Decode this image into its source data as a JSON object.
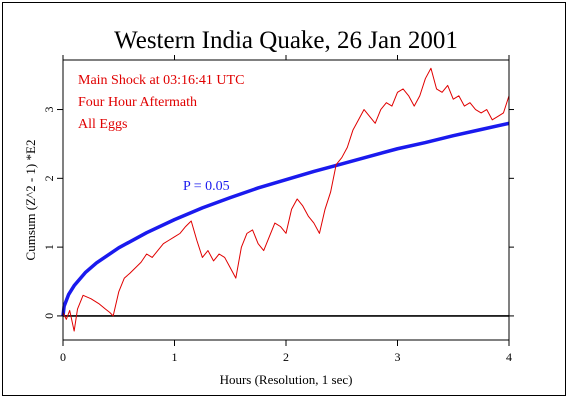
{
  "chart_data": {
    "type": "line",
    "title": "Western India Quake, 26 Jan 2001",
    "xlabel": "Hours (Resolution, 1 sec)",
    "ylabel": "Cumsum (Z^2 - 1) *E2",
    "xlim": [
      0,
      4
    ],
    "ylim": [
      -0.35,
      3.72
    ],
    "x_ticks": [
      0,
      1,
      2,
      3,
      4
    ],
    "x_tick_labels": [
      "0",
      "1",
      "2",
      "3",
      "4"
    ],
    "y_ticks": [
      0,
      1,
      2,
      3
    ],
    "y_tick_labels": [
      "0",
      "1",
      "2",
      "3"
    ],
    "grid": false,
    "annotations": [
      "Main Shock at 03:16:41 UTC",
      "Four Hour Aftermath",
      "All Eggs"
    ],
    "series": [
      {
        "name": "",
        "color": "#e00000",
        "x": [
          0,
          0.03,
          0.06,
          0.1,
          0.13,
          0.18,
          0.25,
          0.32,
          0.38,
          0.42,
          0.45,
          0.5,
          0.55,
          0.6,
          0.65,
          0.7,
          0.75,
          0.8,
          0.85,
          0.9,
          0.95,
          1.0,
          1.05,
          1.1,
          1.15,
          1.2,
          1.25,
          1.3,
          1.35,
          1.4,
          1.45,
          1.5,
          1.55,
          1.6,
          1.65,
          1.7,
          1.75,
          1.8,
          1.85,
          1.9,
          1.95,
          2.0,
          2.05,
          2.1,
          2.15,
          2.2,
          2.25,
          2.3,
          2.35,
          2.4,
          2.45,
          2.5,
          2.55,
          2.6,
          2.65,
          2.7,
          2.75,
          2.8,
          2.85,
          2.9,
          2.95,
          3.0,
          3.05,
          3.1,
          3.15,
          3.2,
          3.25,
          3.3,
          3.35,
          3.4,
          3.45,
          3.5,
          3.55,
          3.6,
          3.65,
          3.7,
          3.75,
          3.8,
          3.85,
          3.9,
          3.95,
          4.0
        ],
        "y": [
          0.05,
          -0.05,
          0.08,
          -0.22,
          0.1,
          0.3,
          0.25,
          0.18,
          0.1,
          0.05,
          0.0,
          0.35,
          0.55,
          0.62,
          0.7,
          0.78,
          0.9,
          0.85,
          0.95,
          1.05,
          1.1,
          1.15,
          1.2,
          1.3,
          1.38,
          1.1,
          0.85,
          0.95,
          0.8,
          0.9,
          0.85,
          0.7,
          0.55,
          1.0,
          1.2,
          1.25,
          1.05,
          0.95,
          1.15,
          1.35,
          1.3,
          1.2,
          1.55,
          1.7,
          1.6,
          1.45,
          1.35,
          1.2,
          1.55,
          1.8,
          2.2,
          2.3,
          2.45,
          2.7,
          2.85,
          3.0,
          2.9,
          2.8,
          3.0,
          3.1,
          3.05,
          3.25,
          3.3,
          3.2,
          3.05,
          3.2,
          3.45,
          3.6,
          3.3,
          3.25,
          3.35,
          3.15,
          3.2,
          3.05,
          3.1,
          3.0,
          2.95,
          3.0,
          2.85,
          2.9,
          2.95,
          3.2
        ]
      },
      {
        "name": "P = 0.05",
        "color": "#1a1aee",
        "x": [
          0,
          0.01,
          0.05,
          0.1,
          0.2,
          0.3,
          0.5,
          0.75,
          1.0,
          1.25,
          1.5,
          1.75,
          2.0,
          2.25,
          2.5,
          2.75,
          3.0,
          3.25,
          3.5,
          3.75,
          4.0
        ],
        "y": [
          0.0,
          0.14,
          0.31,
          0.44,
          0.63,
          0.77,
          0.99,
          1.21,
          1.4,
          1.57,
          1.72,
          1.86,
          1.98,
          2.1,
          2.21,
          2.32,
          2.43,
          2.52,
          2.62,
          2.71,
          2.8
        ]
      },
      {
        "name": "",
        "color": "#000000",
        "x": [
          0,
          4
        ],
        "y": [
          0,
          0
        ]
      }
    ]
  }
}
